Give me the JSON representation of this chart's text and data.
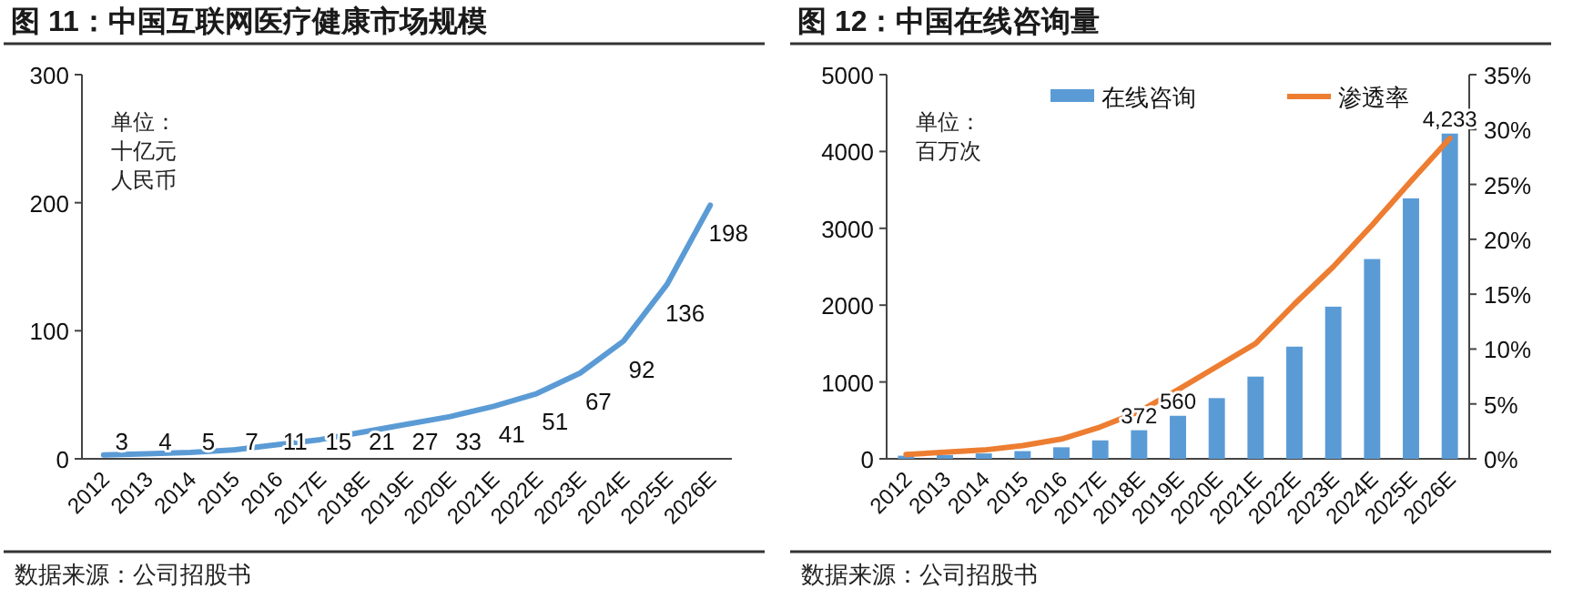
{
  "chart_data": [
    {
      "type": "line",
      "title": "图 11：中国互联网医疗健康市场规模",
      "categories": [
        "2012",
        "2013",
        "2014",
        "2015",
        "2016",
        "2017E",
        "2018E",
        "2019E",
        "2020E",
        "2021E",
        "2022E",
        "2023E",
        "2024E",
        "2025E",
        "2026E"
      ],
      "series": [
        {
          "color": "#5b9bd5",
          "values": [
            3,
            4,
            5,
            7,
            11,
            15,
            21,
            27,
            33,
            41,
            51,
            67,
            92,
            136,
            198
          ]
        }
      ],
      "ylim": [
        0,
        300
      ],
      "yticks": [
        0,
        100,
        200,
        300
      ],
      "data_labels": true,
      "marker": "none",
      "annotations": [
        "单位：十亿元人民币",
        "数据来源：公司招股书"
      ]
    },
    {
      "type": "bar",
      "title": "图 12：中国在线咨询量",
      "categories": [
        "2012",
        "2013",
        "2014",
        "2015",
        "2016",
        "2017E",
        "2018E",
        "2019E",
        "2020E",
        "2021E",
        "2022E",
        "2023E",
        "2024E",
        "2025E",
        "2026E"
      ],
      "series": [
        {
          "name": "在线咨询",
          "color": "#5b9bd5",
          "values": [
            40,
            50,
            70,
            100,
            150,
            240,
            372,
            560,
            790,
            1070,
            1460,
            1980,
            2600,
            3390,
            4233
          ],
          "value_labels": [
            null,
            null,
            null,
            null,
            null,
            null,
            "372",
            "560",
            null,
            null,
            null,
            null,
            null,
            null,
            "4,233"
          ]
        },
        {
          "name": "渗透率",
          "type": "line",
          "axis": "y2",
          "color": "#ed7d31",
          "values": [
            0.4,
            0.6,
            0.8,
            1.2,
            1.8,
            2.9,
            4.3,
            6.3,
            8.4,
            10.5,
            14.1,
            17.5,
            21.3,
            25.3,
            29.2
          ]
        }
      ],
      "ylim": [
        0,
        5000
      ],
      "yticks": [
        0,
        1000,
        2000,
        3000,
        4000,
        5000
      ],
      "y2lim": [
        0,
        35
      ],
      "y2ticks": [
        {
          "value": 0,
          "label": "0%"
        },
        {
          "value": 5,
          "label": "5%"
        },
        {
          "value": 10,
          "label": "10%"
        },
        {
          "value": 15,
          "label": "15%"
        },
        {
          "value": 20,
          "label": "20%"
        },
        {
          "value": 25,
          "label": "25%"
        },
        {
          "value": 30,
          "label": "30%"
        },
        {
          "value": 35,
          "label": "35%"
        }
      ],
      "legend": "top",
      "marker": "none",
      "annotations": [
        "单位：百万次",
        "数据来源：公司招股书"
      ]
    }
  ]
}
